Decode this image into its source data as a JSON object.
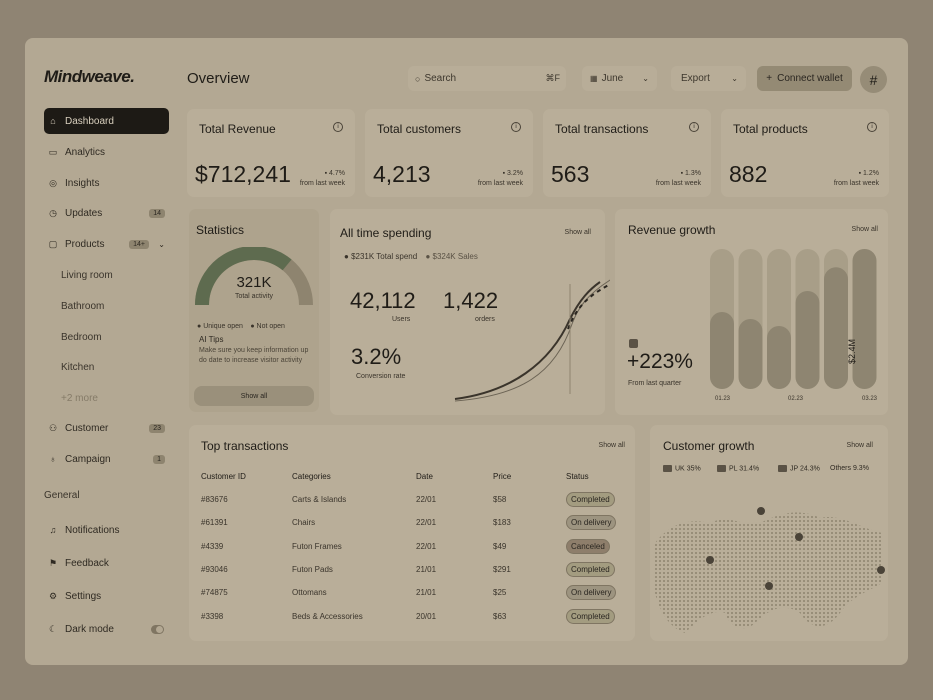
{
  "app": {
    "logo": "Mindweave."
  },
  "sidebar": {
    "items": [
      {
        "label": "Dashboard",
        "icon": "home-icon"
      },
      {
        "label": "Analytics",
        "icon": "chart-icon"
      },
      {
        "label": "Insights",
        "icon": "insights-icon"
      },
      {
        "label": "Updates",
        "icon": "clock-icon",
        "badge": "14"
      },
      {
        "label": "Products",
        "icon": "bag-icon",
        "badge": "14+"
      },
      {
        "label": "Customer",
        "icon": "users-icon",
        "badge": "23"
      },
      {
        "label": "Campaign",
        "icon": "trophy-icon",
        "badge": "1"
      }
    ],
    "products_sub": [
      "Living room",
      "Bathroom",
      "Bedroom",
      "Kitchen",
      "+2 more"
    ],
    "general_label": "General",
    "general_items": [
      {
        "label": "Notifications",
        "icon": "bell-icon"
      },
      {
        "label": "Feedback",
        "icon": "flag-icon"
      },
      {
        "label": "Settings",
        "icon": "gear-icon"
      },
      {
        "label": "Dark mode",
        "icon": "moon-icon"
      }
    ]
  },
  "header": {
    "title": "Overview",
    "search_placeholder": "Search",
    "search_shortcut": "⌘F",
    "month": "June",
    "export": "Export",
    "connect": "Connect wallet"
  },
  "kpis": [
    {
      "title": "Total Revenue",
      "value": "$712,241",
      "change": "4.7%",
      "sub": "from last week"
    },
    {
      "title": "Total customers",
      "value": "4,213",
      "change": "3.2%",
      "sub": "from last week"
    },
    {
      "title": "Total transactions",
      "value": "563",
      "change": "1.3%",
      "sub": "from last week"
    },
    {
      "title": "Total products",
      "value": "882",
      "change": "1.2%",
      "sub": "from last week"
    }
  ],
  "statistics": {
    "title": "Statistics",
    "value": "321K",
    "sub": "Total activity",
    "gauge_fraction": 0.72,
    "legend": [
      "Unique open",
      "Not open"
    ],
    "ai_title": "AI Tips",
    "ai_text": "Make sure you keep information up do date to increase visitor activity",
    "button": "Show all"
  },
  "spending": {
    "title": "All time spending",
    "show_all": "Show all",
    "legend_spend": "$231K Total spend",
    "legend_sales": "$324K Sales",
    "users_value": "42,112",
    "users_label": "Users",
    "orders_value": "1,422",
    "orders_label": "orders",
    "conversion_value": "3.2%",
    "conversion_label": "Conversion rate"
  },
  "revenue_growth": {
    "title": "Revenue growth",
    "show_all": "Show all",
    "value": "+223%",
    "sub": "From last quarter",
    "bar_label": "$2.4M",
    "x_labels": [
      "01.23",
      "02.23",
      "03.23"
    ]
  },
  "chart_data": {
    "type": "bar",
    "values": [
      0.55,
      0.5,
      0.45,
      0.7,
      0.87,
      1.0
    ],
    "track_values": [
      1,
      1,
      1,
      1,
      1,
      1
    ],
    "ylim": [
      0,
      1
    ]
  },
  "transactions": {
    "title": "Top transactions",
    "show_all": "Show all",
    "headers": [
      "Customer ID",
      "Categories",
      "Date",
      "Price",
      "Status"
    ],
    "rows": [
      {
        "id": "#83676",
        "category": "Carts & Islands",
        "date": "22/01",
        "price": "$58",
        "status": "Completed",
        "kind": "completed"
      },
      {
        "id": "#61391",
        "category": "Chairs",
        "date": "22/01",
        "price": "$183",
        "status": "On delivery",
        "kind": "delivery"
      },
      {
        "id": "#4339",
        "category": "Futon Frames",
        "date": "22/01",
        "price": "$49",
        "status": "Canceled",
        "kind": "canceled"
      },
      {
        "id": "#93046",
        "category": "Futon Pads",
        "date": "21/01",
        "price": "$291",
        "status": "Completed",
        "kind": "completed"
      },
      {
        "id": "#74875",
        "category": "Ottomans",
        "date": "21/01",
        "price": "$25",
        "status": "On delivery",
        "kind": "delivery"
      },
      {
        "id": "#3398",
        "category": "Beds & Accessories",
        "date": "20/01",
        "price": "$63",
        "status": "Completed",
        "kind": "completed"
      }
    ]
  },
  "customer_growth": {
    "title": "Customer growth",
    "show_all": "Show all",
    "legend": [
      {
        "country": "UK",
        "value": "35%"
      },
      {
        "country": "PL",
        "value": "31.4%"
      },
      {
        "country": "JP",
        "value": "24.3%"
      },
      {
        "country": "Others",
        "value": "9.3%"
      }
    ]
  },
  "colors": {
    "background": "#8f8473",
    "card": "#b9ae99",
    "dark": "#1d1a15",
    "bar": "#8e8571"
  }
}
